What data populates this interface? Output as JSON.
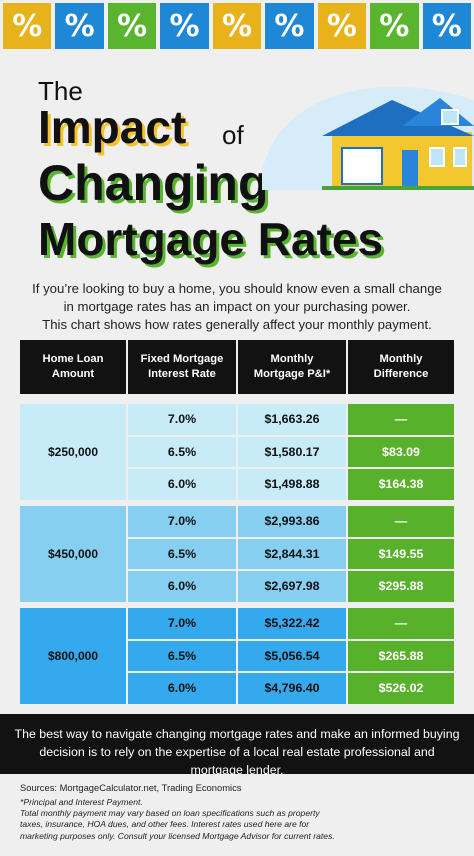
{
  "tiles": [
    {
      "glyph": "%",
      "color": "yellow",
      "icon": "percent-icon"
    },
    {
      "glyph": "%",
      "color": "blue",
      "icon": "percent-icon"
    },
    {
      "glyph": "%",
      "color": "green",
      "icon": "percent-icon"
    },
    {
      "glyph": "%",
      "color": "blue",
      "icon": "percent-icon"
    },
    {
      "glyph": "%",
      "color": "yellow",
      "icon": "percent-icon"
    },
    {
      "glyph": "%",
      "color": "blue",
      "icon": "percent-icon"
    },
    {
      "glyph": "%",
      "color": "yellow",
      "icon": "percent-icon"
    },
    {
      "glyph": "%",
      "color": "green",
      "icon": "percent-icon"
    },
    {
      "glyph": "%",
      "color": "blue",
      "icon": "percent-icon"
    }
  ],
  "title": {
    "the": "The",
    "impact": "Impact",
    "of": "of",
    "changing": "Changing",
    "rates": "Mortgage Rates"
  },
  "intro": {
    "line1": "If you’re looking to buy a home, you should know even a small change",
    "line2": "in mortgage rates has an impact on your purchasing power.",
    "line3": "This chart shows how rates generally affect your monthly payment."
  },
  "table": {
    "headers": {
      "amount_1": "Home Loan",
      "amount_2": "Amount",
      "rate_1": "Fixed Mortgage",
      "rate_2": "Interest Rate",
      "payment_1": "Monthly",
      "payment_2": "Mortgage P&I*",
      "difference_1": "Monthly",
      "difference_2": "Difference"
    },
    "groups": [
      {
        "amount": "$250,000",
        "rows": [
          {
            "rate": "7.0%",
            "payment": "$1,663.26",
            "difference": "—"
          },
          {
            "rate": "6.5%",
            "payment": "$1,580.17",
            "difference": "$83.09"
          },
          {
            "rate": "6.0%",
            "payment": "$1,498.88",
            "difference": "$164.38"
          }
        ]
      },
      {
        "amount": "$450,000",
        "rows": [
          {
            "rate": "7.0%",
            "payment": "$2,993.86",
            "difference": "—"
          },
          {
            "rate": "6.5%",
            "payment": "$2,844.31",
            "difference": "$149.55"
          },
          {
            "rate": "6.0%",
            "payment": "$2,697.98",
            "difference": "$295.88"
          }
        ]
      },
      {
        "amount": "$800,000",
        "rows": [
          {
            "rate": "7.0%",
            "payment": "$5,322.42",
            "difference": "—"
          },
          {
            "rate": "6.5%",
            "payment": "$5,056.54",
            "difference": "$265.88"
          },
          {
            "rate": "6.0%",
            "payment": "$4,796.40",
            "difference": "$526.02"
          }
        ]
      }
    ]
  },
  "callout": {
    "line1": "The best way to navigate changing mortgage rates and make an informed buying",
    "line2": "decision is to rely on the expertise of a local real estate professional and mortgage lender."
  },
  "sources": "Sources: MortgageCalculator.net, Trading Economics",
  "notes": {
    "line1": "*Principal and Interest Payment.",
    "line2": "Total monthly payment may vary based on loan specifications such as property",
    "line3": "taxes, insurance, HOA dues, and other fees. Interest rates used here are for",
    "line4": "marketing purposes only. Consult your licensed Mortgage Advisor for current rates."
  },
  "colors": {
    "yellow": "#e8b21b",
    "blue": "#1e88d6",
    "green": "#57b12a",
    "tier1": "#c7ecf8",
    "tier2": "#86cff0",
    "tier3": "#35a9ee",
    "dark": "#121212"
  }
}
